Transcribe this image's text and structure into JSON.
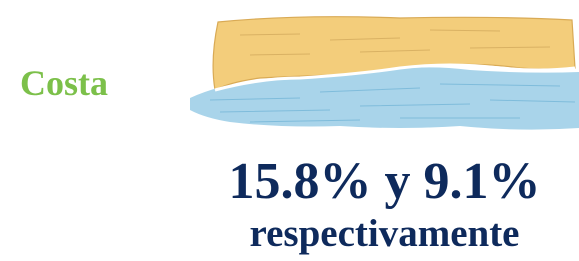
{
  "label": "Costa",
  "headline": "15.8% y 9.1%",
  "subtext": "respectivamente"
}
